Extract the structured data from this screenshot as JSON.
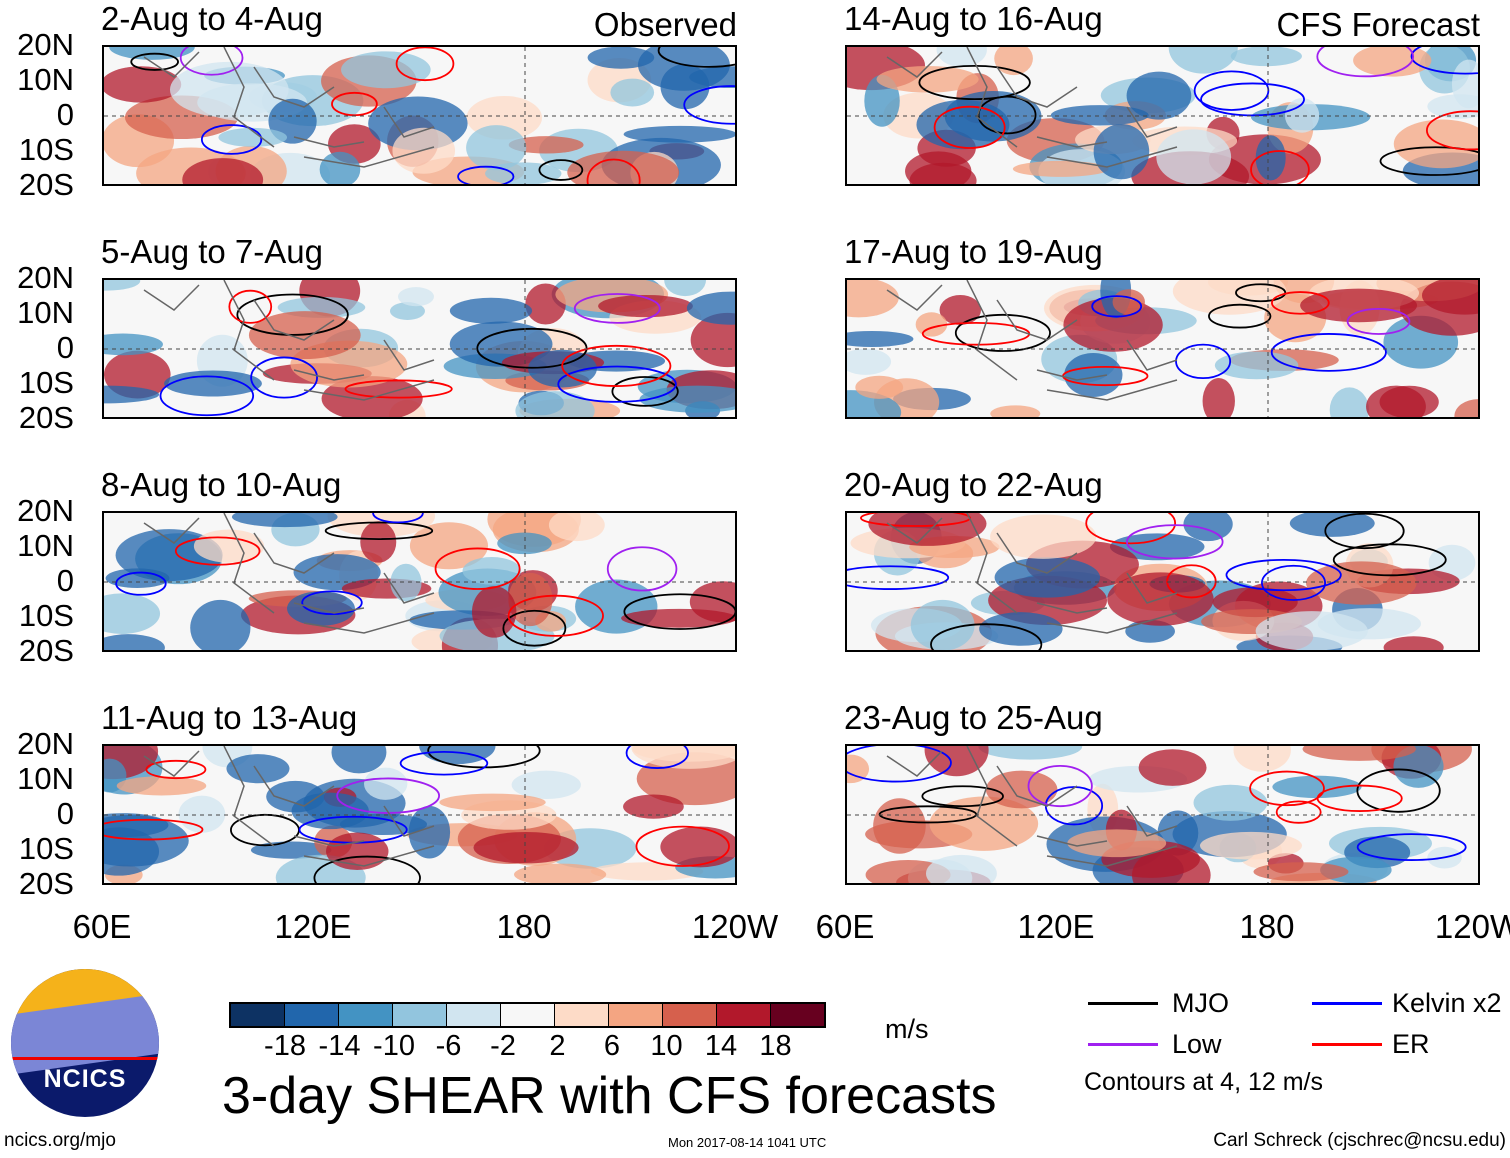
{
  "panels_left": [
    {
      "title": "2-Aug to 4-Aug",
      "tag": "Observed"
    },
    {
      "title": "5-Aug to 7-Aug"
    },
    {
      "title": "8-Aug to 10-Aug"
    },
    {
      "title": "11-Aug to 13-Aug"
    }
  ],
  "panels_right": [
    {
      "title": "14-Aug to 16-Aug",
      "tag": "CFS Forecast"
    },
    {
      "title": "17-Aug to 19-Aug"
    },
    {
      "title": "20-Aug to 22-Aug"
    },
    {
      "title": "23-Aug to 25-Aug"
    }
  ],
  "y_ticks": [
    "20N",
    "10N",
    "0",
    "10S",
    "20S"
  ],
  "x_ticks": [
    "60E",
    "120E",
    "180",
    "120W"
  ],
  "colorbar": {
    "colors": [
      "#0d3263",
      "#2166ac",
      "#4393c3",
      "#92c5de",
      "#d1e5f0",
      "#f7f7f7",
      "#fddbc7",
      "#f4a582",
      "#d6604d",
      "#b2182b",
      "#67001f"
    ],
    "labels": [
      "-18",
      "-14",
      "-10",
      "-6",
      "-2",
      "2",
      "6",
      "10",
      "14",
      "18"
    ],
    "units": "m/s"
  },
  "title": "3-day SHEAR with CFS forecasts",
  "legend": {
    "items": [
      {
        "label": "MJO",
        "color": "#000000"
      },
      {
        "label": "Kelvin x2",
        "color": "#0000ff"
      },
      {
        "label": "Low",
        "color": "#a020f0"
      },
      {
        "label": "ER",
        "color": "#ff0000"
      }
    ],
    "note": "Contours at 4, 12 m/s"
  },
  "logo": {
    "text": "NCICS"
  },
  "footer": {
    "left": "ncics.org/mjo",
    "center": "Mon 2017-08-14 1041 UTC",
    "right": "Carl Schreck (cjschrec@ncsu.edu)"
  }
}
